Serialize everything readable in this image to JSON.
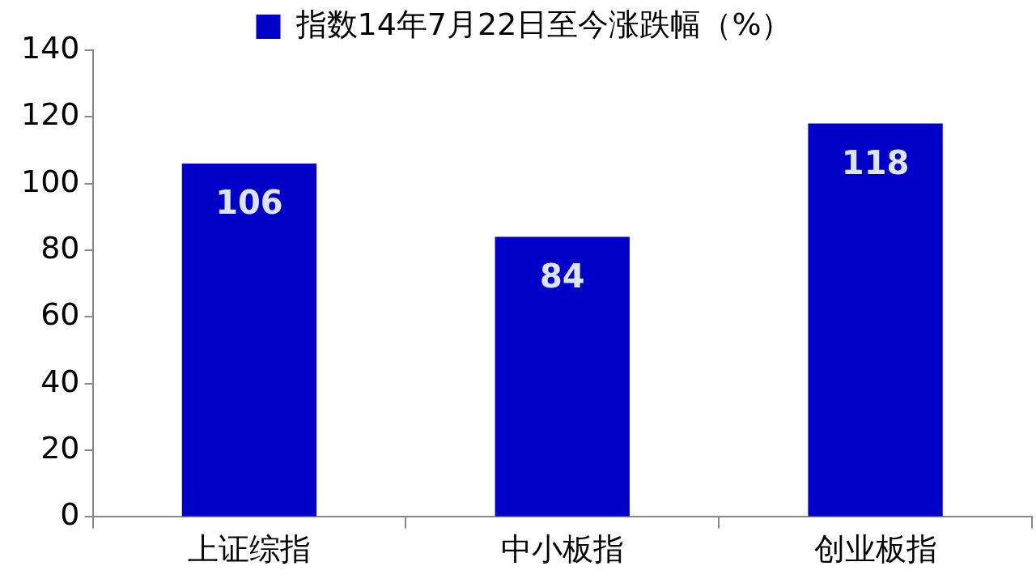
{
  "chart_data": {
    "type": "bar",
    "categories": [
      "上证综指",
      "中小板指",
      "创业板指"
    ],
    "series": [
      {
        "name": "指数14年7月22日至今涨跌幅（%）",
        "color": "#0000c8",
        "values": [
          106,
          84,
          118
        ]
      }
    ],
    "ylim": [
      0,
      140
    ],
    "yticks": [
      0,
      20,
      40,
      60,
      80,
      100,
      120,
      140
    ],
    "data_labels": true,
    "legend": "top"
  }
}
